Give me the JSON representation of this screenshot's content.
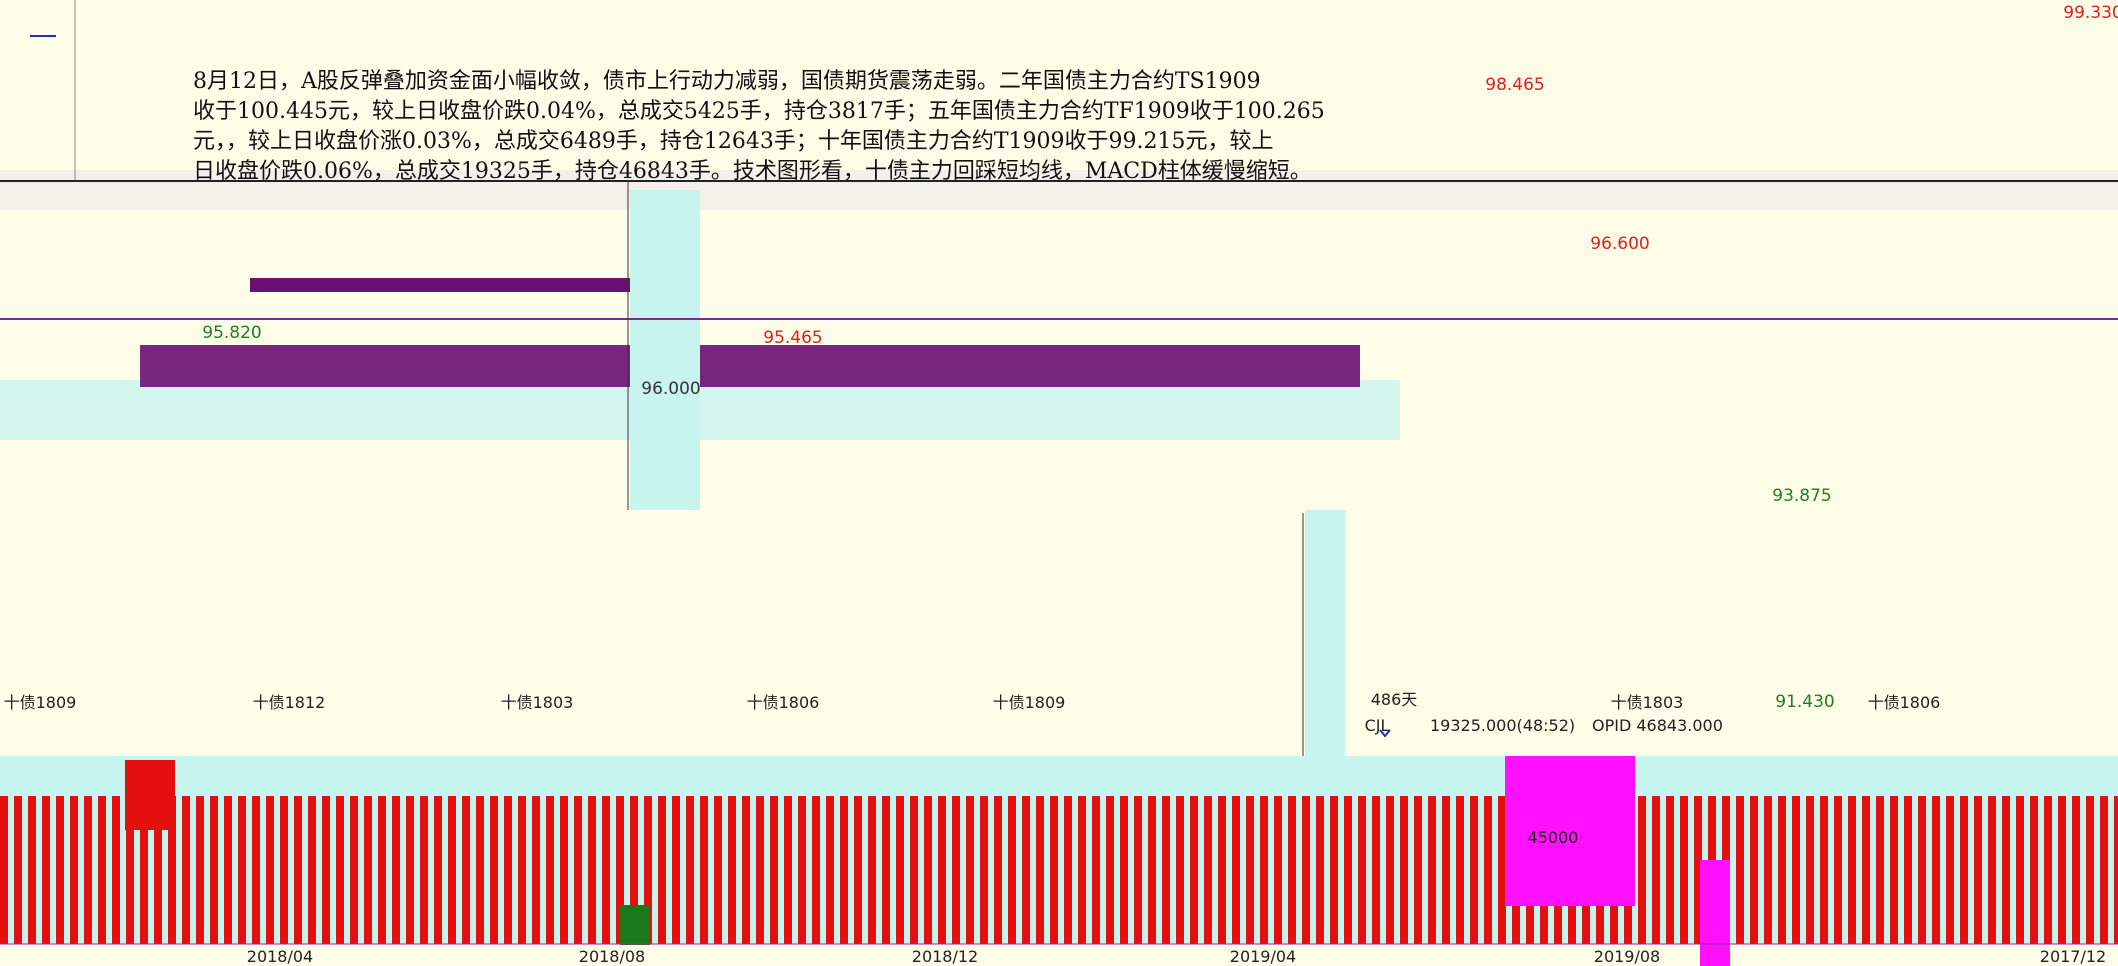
{
  "article": {
    "lines": [
      "8月12日，A股反弹叠加资金面小幅收敛，债市上行动力减弱，国债期货震荡走弱。二年国债主力合约TS1909",
      "收于100.445元，较上日收盘价跌0.04%，总成交5425手，持仓3817手；五年国债主力合约TF1909收于100.265",
      "元，，较上日收盘价涨0.03%，总成交6489手，持仓12643手；十年国债主力合约T1909收于99.215元，较上",
      "日收盘价跌0.06%，总成交19325手，持仓46843手。技术图形看，十债主力回踩短均线，MACD柱体缓慢缩短。"
    ]
  },
  "price_labels": [
    {
      "text": "98.465",
      "color": "#e02020"
    },
    {
      "text": "99.330",
      "color": "#e02020"
    },
    {
      "text": "95.820",
      "color": "#208020"
    },
    {
      "text": "95.465",
      "color": "#e02020"
    },
    {
      "text": "96.600",
      "color": "#e02020"
    },
    {
      "text": "96.000",
      "color": "#333333"
    },
    {
      "text": "93.875",
      "color": "#208020"
    },
    {
      "text": "91.430",
      "color": "#208020"
    }
  ],
  "contract_labels": [
    "十债1809",
    "十债1812",
    "十债1803",
    "十债1806",
    "十债1809",
    "十债1803",
    "十债1806"
  ],
  "info_bar": {
    "days": "486天",
    "indicator": "CJL",
    "volume": "19325.000(48:52)",
    "open_interest": "OPID 46843.000",
    "scale_label": "45000"
  },
  "date_axis": [
    "2018/04",
    "2018/08",
    "2018/12",
    "2019/04",
    "2019/08",
    "2017/12"
  ]
}
